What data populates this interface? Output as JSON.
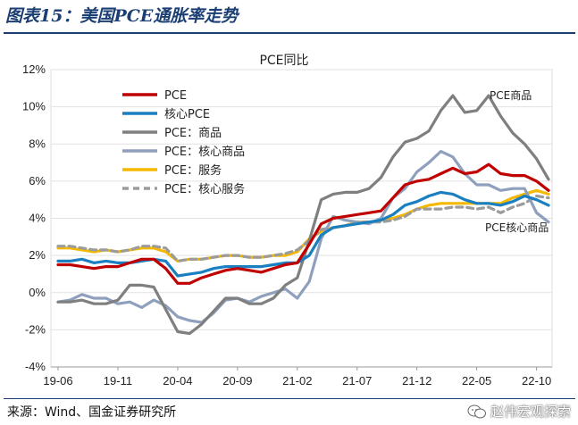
{
  "figure": {
    "title": "图表15：美国PCE通胀率走势",
    "source": "来源：Wind、国金证券研究所",
    "watermark": "赵伟宏观探索"
  },
  "colors": {
    "pce": "#c00000",
    "core_pce": "#1a7fc1",
    "goods": "#7f7f7f",
    "core_goods": "#8ea0bd",
    "services": "#f5b800",
    "core_services": "#9b9b9b",
    "title": "#1b3f73"
  },
  "chart_data": {
    "type": "line",
    "title": "PCE同比",
    "xlabel": "",
    "ylabel": "",
    "ylim": [
      -4,
      12
    ],
    "yticks": [
      -4,
      -2,
      0,
      2,
      4,
      6,
      8,
      10,
      12
    ],
    "ytick_labels": [
      "-4%",
      "-2%",
      "0%",
      "2%",
      "4%",
      "6%",
      "8%",
      "10%",
      "12%"
    ],
    "xtick_labels": [
      "19-06",
      "19-11",
      "20-04",
      "20-09",
      "21-02",
      "21-07",
      "21-12",
      "22-05",
      "22-10"
    ],
    "xtick_index": [
      0,
      5,
      10,
      15,
      20,
      25,
      30,
      35,
      40
    ],
    "x": [
      "19-06",
      "19-07",
      "19-08",
      "19-09",
      "19-10",
      "19-11",
      "19-12",
      "20-01",
      "20-02",
      "20-03",
      "20-04",
      "20-05",
      "20-06",
      "20-07",
      "20-08",
      "20-09",
      "20-10",
      "20-11",
      "20-12",
      "21-01",
      "21-02",
      "21-03",
      "21-04",
      "21-05",
      "21-06",
      "21-07",
      "21-08",
      "21-09",
      "21-10",
      "21-11",
      "21-12",
      "22-01",
      "22-02",
      "22-03",
      "22-04",
      "22-05",
      "22-06",
      "22-07",
      "22-08",
      "22-09",
      "22-10",
      "22-11"
    ],
    "legend": [
      "PCE",
      "核心PCE",
      "PCE：商品",
      "PCE：核心商品",
      "PCE：服务",
      "PCE：核心服务"
    ],
    "annotations": [
      "PCE商品",
      "PCE核心商品"
    ],
    "series": [
      {
        "name": "PCE",
        "style": "solid",
        "values": [
          1.5,
          1.5,
          1.4,
          1.3,
          1.4,
          1.4,
          1.6,
          1.8,
          1.8,
          1.3,
          0.5,
          0.5,
          0.8,
          1.0,
          1.2,
          1.3,
          1.2,
          1.1,
          1.3,
          1.5,
          1.6,
          2.6,
          3.7,
          4.0,
          4.1,
          4.2,
          4.3,
          4.4,
          5.1,
          5.8,
          6.0,
          6.1,
          6.4,
          6.7,
          6.4,
          6.5,
          6.9,
          6.4,
          6.3,
          6.3,
          6.0,
          5.5
        ]
      },
      {
        "name": "核心PCE",
        "style": "solid",
        "values": [
          1.7,
          1.7,
          1.8,
          1.6,
          1.7,
          1.6,
          1.6,
          1.7,
          1.8,
          1.7,
          0.9,
          1.0,
          1.1,
          1.3,
          1.4,
          1.4,
          1.4,
          1.4,
          1.5,
          1.6,
          1.6,
          2.0,
          3.1,
          3.5,
          3.6,
          3.7,
          3.8,
          3.9,
          4.2,
          4.7,
          4.9,
          5.2,
          5.4,
          5.3,
          5.0,
          4.8,
          4.8,
          4.7,
          4.9,
          5.2,
          5.0,
          4.7
        ]
      },
      {
        "name": "PCE：商品",
        "style": "solid",
        "values": [
          -0.5,
          -0.5,
          -0.4,
          -0.6,
          -0.6,
          -0.4,
          0.4,
          0.4,
          0.3,
          -0.9,
          -2.1,
          -2.2,
          -1.7,
          -1.0,
          -0.3,
          -0.3,
          -0.6,
          -0.6,
          -0.3,
          0.4,
          0.8,
          2.8,
          5.0,
          5.3,
          5.4,
          5.4,
          5.6,
          6.2,
          7.3,
          8.1,
          8.3,
          8.7,
          9.8,
          10.6,
          9.7,
          9.8,
          10.6,
          9.5,
          8.6,
          8.0,
          7.2,
          6.1
        ]
      },
      {
        "name": "PCE：核心商品",
        "style": "solid",
        "values": [
          -0.5,
          -0.4,
          -0.1,
          -0.3,
          -0.3,
          -0.6,
          -0.5,
          -0.8,
          -0.4,
          -0.7,
          -1.3,
          -1.5,
          -1.6,
          -1.1,
          -0.4,
          -0.3,
          -0.5,
          -0.2,
          0.0,
          0.2,
          -0.3,
          0.6,
          2.9,
          4.1,
          3.9,
          3.8,
          3.7,
          4.0,
          5.1,
          5.6,
          6.5,
          7.0,
          7.6,
          7.3,
          6.4,
          5.8,
          5.8,
          5.5,
          5.6,
          5.6,
          4.3,
          3.8
        ]
      },
      {
        "name": "PCE：服务",
        "style": "solid",
        "values": [
          2.4,
          2.4,
          2.3,
          2.2,
          2.3,
          2.2,
          2.3,
          2.4,
          2.4,
          2.2,
          1.7,
          1.8,
          1.8,
          1.9,
          2.0,
          2.0,
          1.9,
          1.9,
          2.0,
          2.0,
          2.2,
          2.9,
          3.3,
          3.5,
          3.6,
          3.8,
          3.8,
          3.9,
          4.0,
          4.2,
          4.5,
          4.7,
          4.8,
          4.8,
          4.8,
          4.8,
          4.8,
          4.8,
          5.1,
          5.3,
          5.5,
          5.3
        ]
      },
      {
        "name": "PCE：核心服务",
        "style": "dashed",
        "values": [
          2.5,
          2.5,
          2.4,
          2.3,
          2.3,
          2.2,
          2.3,
          2.5,
          2.5,
          2.4,
          1.7,
          1.8,
          1.8,
          1.9,
          2.0,
          2.0,
          1.9,
          1.9,
          2.0,
          2.1,
          2.3,
          2.8,
          3.4,
          3.5,
          3.6,
          3.8,
          3.8,
          3.8,
          3.9,
          4.1,
          4.5,
          4.5,
          4.5,
          4.6,
          4.6,
          4.5,
          4.6,
          4.3,
          4.6,
          4.8,
          5.2,
          5.1
        ]
      }
    ]
  }
}
